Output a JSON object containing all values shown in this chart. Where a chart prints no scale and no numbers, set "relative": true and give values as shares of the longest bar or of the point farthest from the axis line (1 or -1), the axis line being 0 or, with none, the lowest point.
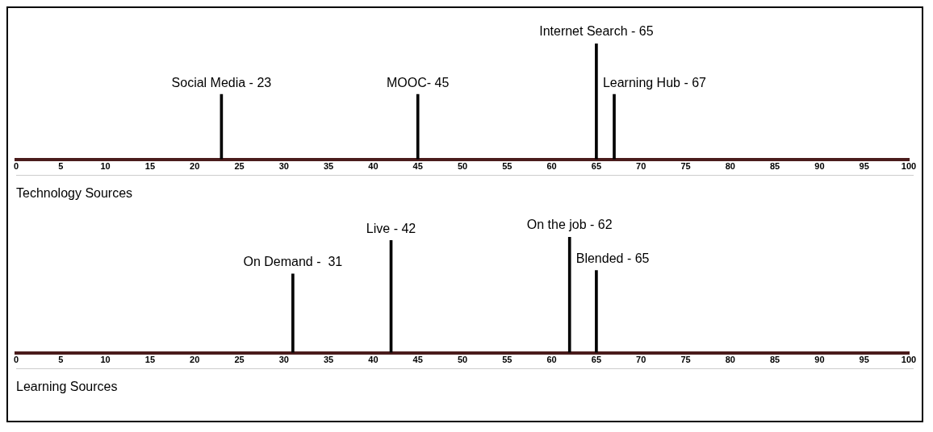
{
  "chart_data": [
    {
      "type": "bar",
      "relative": true,
      "xlabel": "Technology Sources",
      "x": [
        23,
        45,
        65,
        67
      ],
      "values": [
        0.56,
        0.56,
        1,
        0.56
      ],
      "color": "#000000",
      "xlim": [
        0,
        100
      ],
      "xticks": [
        0,
        5,
        10,
        15,
        20,
        25,
        30,
        35,
        40,
        45,
        50,
        55,
        60,
        65,
        70,
        75,
        80,
        85,
        90,
        95,
        100
      ],
      "annotations": [
        {
          "text": "Social Media - 23",
          "x": 23,
          "y": 0.56
        },
        {
          "text": "MOOC- 45",
          "x": 45,
          "y": 0.56
        },
        {
          "text": "Internet Search - 65",
          "x": 65,
          "y": 1
        },
        {
          "text": "Learning Hub - 67",
          "x": 67,
          "y": 0.56
        }
      ]
    },
    {
      "type": "bar",
      "relative": true,
      "xlabel": "Learning Sources",
      "x": [
        31,
        42,
        62,
        65
      ],
      "values": [
        0.68,
        0.97,
        1,
        0.71
      ],
      "color": "#000000",
      "xlim": [
        0,
        100
      ],
      "xticks": [
        0,
        5,
        10,
        15,
        20,
        25,
        30,
        35,
        40,
        45,
        50,
        55,
        60,
        65,
        70,
        75,
        80,
        85,
        90,
        95,
        100
      ],
      "annotations": [
        {
          "text": "On Demand -  31",
          "x": 31,
          "y": 0.68
        },
        {
          "text": "Live - 42",
          "x": 42,
          "y": 0.97
        },
        {
          "text": "On the job - 62",
          "x": 62,
          "y": 1
        },
        {
          "text": "Blended - 65",
          "x": 65,
          "y": 0.71
        }
      ]
    }
  ]
}
